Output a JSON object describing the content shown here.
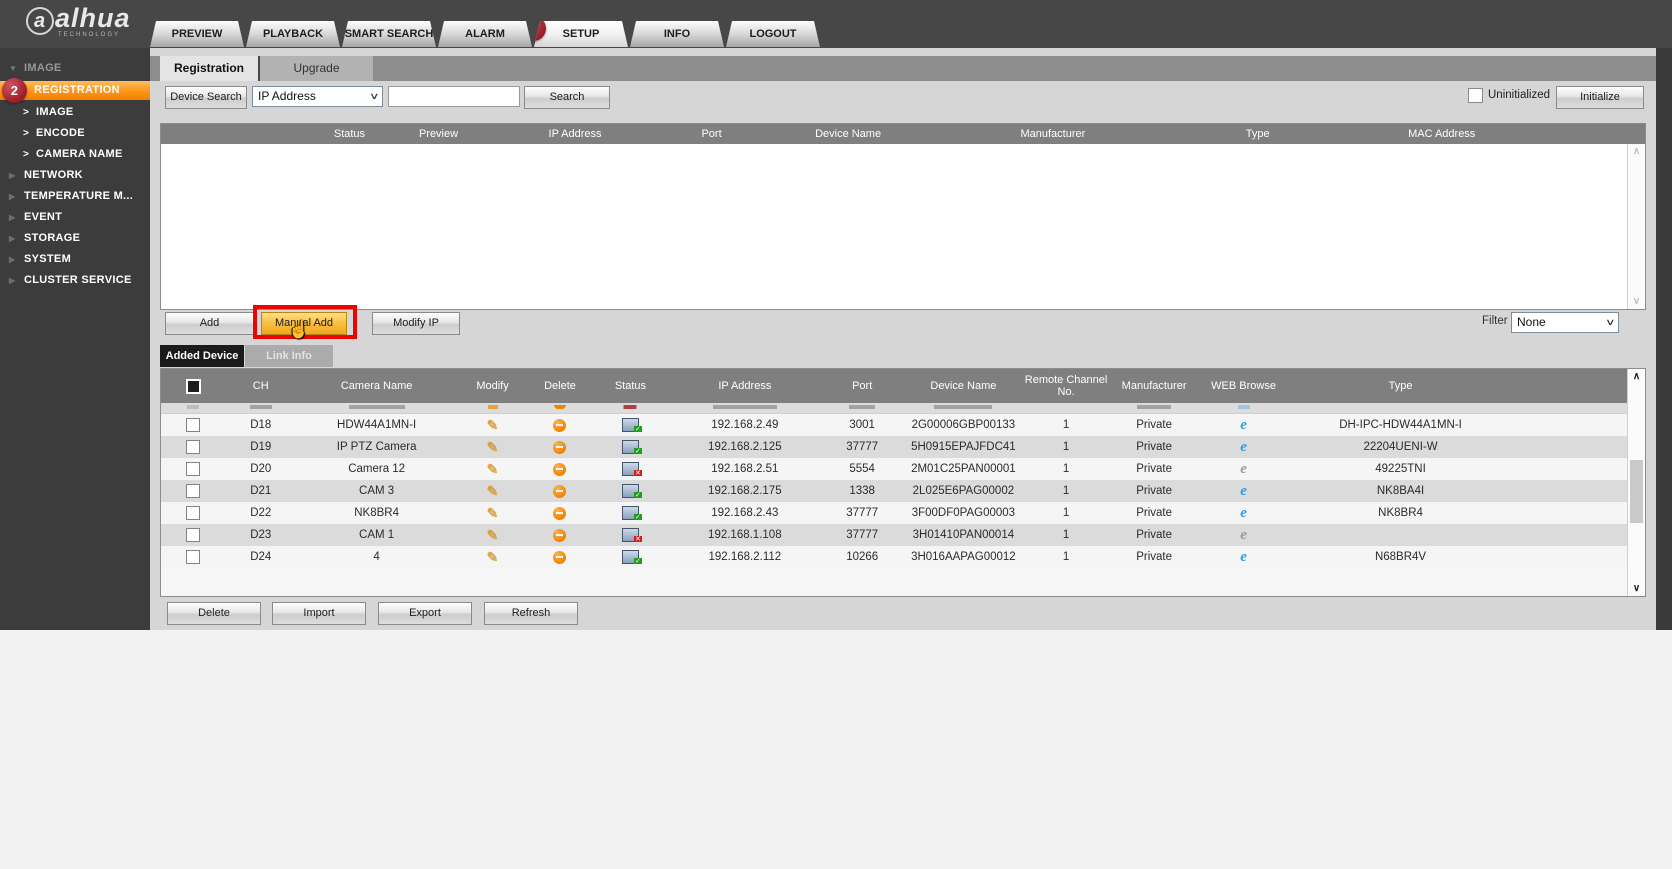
{
  "header": {
    "logo_brand": "alhua",
    "logo_sub": "TECHNOLOGY",
    "nav_tabs": [
      {
        "label": "PREVIEW",
        "active": false
      },
      {
        "label": "PLAYBACK",
        "active": false
      },
      {
        "label": "SMART SEARCH",
        "active": false
      },
      {
        "label": "ALARM",
        "active": false
      },
      {
        "label": "SETUP",
        "active": true,
        "badge": "1"
      },
      {
        "label": "INFO",
        "active": false
      },
      {
        "label": "LOGOUT",
        "active": false
      }
    ]
  },
  "sidebar": {
    "items": [
      {
        "label": "IMAGE",
        "type": "root"
      },
      {
        "label": "REGISTRATION",
        "type": "active",
        "badge": "2"
      },
      {
        "label": "IMAGE",
        "type": "leaf"
      },
      {
        "label": "ENCODE",
        "type": "leaf"
      },
      {
        "label": "CAMERA NAME",
        "type": "leaf"
      },
      {
        "label": "NETWORK",
        "type": "group"
      },
      {
        "label": "TEMPERATURE M...",
        "type": "group"
      },
      {
        "label": "EVENT",
        "type": "group"
      },
      {
        "label": "STORAGE",
        "type": "group"
      },
      {
        "label": "SYSTEM",
        "type": "group"
      },
      {
        "label": "CLUSTER SERVICE",
        "type": "group"
      }
    ]
  },
  "page_tabs": {
    "registration": "Registration",
    "upgrade": "Upgrade"
  },
  "search_bar": {
    "device_search_label": "Device Search",
    "search_type_value": "IP Address",
    "search_input_value": "",
    "search_label": "Search",
    "uninitialized_label": "Uninitialized",
    "uninitialized_checked": false,
    "initialize_label": "Initialize"
  },
  "discover_table": {
    "headers": [
      "Status",
      "Preview",
      "IP Address",
      "Port",
      "Device Name",
      "Manufacturer",
      "Type",
      "MAC Address"
    ],
    "rows": []
  },
  "actions": {
    "add_label": "Add",
    "manual_add_label": "Manual Add",
    "modify_ip_label": "Modify IP",
    "filter_label": "Filter",
    "filter_value": "None"
  },
  "device_tabs": {
    "added_device": "Added Device",
    "link_info": "Link Info"
  },
  "added_table": {
    "headers": [
      "CH",
      "Camera Name",
      "Modify",
      "Delete",
      "Status",
      "IP Address",
      "Port",
      "Device Name",
      "Remote Channel No.",
      "Manufacturer",
      "WEB Browse",
      "Type"
    ],
    "rows": [
      {
        "ch": "D18",
        "camera_name": "HDW44A1MN-I",
        "status": "online",
        "ip": "192.168.2.49",
        "port": "3001",
        "device_name": "2G00006GBP00133",
        "remote_channel": "1",
        "manufacturer": "Private",
        "web": "enabled",
        "type": "DH-IPC-HDW44A1MN-I"
      },
      {
        "ch": "D19",
        "camera_name": "IP PTZ Camera",
        "status": "online",
        "ip": "192.168.2.125",
        "port": "37777",
        "device_name": "5H0915EPAJFDC41",
        "remote_channel": "1",
        "manufacturer": "Private",
        "web": "enabled",
        "type": "22204UENI-W"
      },
      {
        "ch": "D20",
        "camera_name": "Camera 12",
        "status": "offline",
        "ip": "192.168.2.51",
        "port": "5554",
        "device_name": "2M01C25PAN00001",
        "remote_channel": "1",
        "manufacturer": "Private",
        "web": "disabled",
        "type": "49225TNI"
      },
      {
        "ch": "D21",
        "camera_name": "CAM 3",
        "status": "online",
        "ip": "192.168.2.175",
        "port": "1338",
        "device_name": "2L025E6PAG00002",
        "remote_channel": "1",
        "manufacturer": "Private",
        "web": "enabled",
        "type": "NK8BA4I"
      },
      {
        "ch": "D22",
        "camera_name": "NK8BR4",
        "status": "online",
        "ip": "192.168.2.43",
        "port": "37777",
        "device_name": "3F00DF0PAG00003",
        "remote_channel": "1",
        "manufacturer": "Private",
        "web": "enabled",
        "type": "NK8BR4"
      },
      {
        "ch": "D23",
        "camera_name": "CAM 1",
        "status": "offline",
        "ip": "192.168.1.108",
        "port": "37777",
        "device_name": "3H01410PAN00014",
        "remote_channel": "1",
        "manufacturer": "Private",
        "web": "disabled",
        "type": ""
      },
      {
        "ch": "D24",
        "camera_name": "4",
        "status": "online",
        "ip": "192.168.2.112",
        "port": "10266",
        "device_name": "3H016AAPAG00012",
        "remote_channel": "1",
        "manufacturer": "Private",
        "web": "enabled",
        "type": "N68BR4V"
      }
    ]
  },
  "footer_buttons": [
    "Delete",
    "Import",
    "Export",
    "Refresh"
  ],
  "annotations": {
    "step_1": "1",
    "step_2": "2"
  },
  "icons": {
    "triangle_down": "▼",
    "triangle_right": "▶",
    "leaf_arrow": ">",
    "select_chevron": "∨",
    "scroll_up": "∧",
    "scroll_down": "∨",
    "pencil": "✎",
    "check": "✓",
    "cross": "✕",
    "web_browser_e": "e",
    "hand_cursor": "☝"
  },
  "colors": {
    "accent_orange": "#ff9416",
    "annotation_red": "#ea0600",
    "badge_red": "#9c1b28",
    "status_online_green": "#1f9e1f",
    "status_offline_red": "#cc2222",
    "web_browse_blue": "#2e9fe8",
    "table_header_gray": "#7f7f7f",
    "sidebar_dark": "#3c3c3c"
  }
}
